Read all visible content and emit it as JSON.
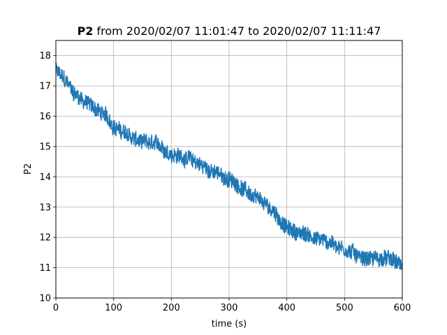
{
  "chart_data": {
    "type": "line",
    "title_bold": "P2",
    "title_rest": " from 2020/02/07 11:01:47 to 2020/02/07 11:11:47",
    "xlabel": "time (s)",
    "ylabel": "P2",
    "xlim": [
      0,
      600
    ],
    "ylim": [
      10,
      18.5
    ],
    "xticks": [
      0,
      100,
      200,
      300,
      400,
      500,
      600
    ],
    "yticks": [
      10,
      11,
      12,
      13,
      14,
      15,
      16,
      17,
      18
    ],
    "grid": true,
    "noise_amplitude": 0.25,
    "series": [
      {
        "color": "#1f77b4",
        "trend_x": [
          0,
          10,
          30,
          50,
          80,
          100,
          130,
          150,
          180,
          200,
          230,
          250,
          280,
          300,
          320,
          350,
          380,
          400,
          420,
          450,
          480,
          500,
          530,
          560,
          580,
          600
        ],
        "trend_y": [
          17.5,
          17.3,
          16.8,
          16.5,
          16.1,
          15.7,
          15.3,
          15.1,
          15.0,
          14.8,
          14.6,
          14.4,
          14.1,
          13.9,
          13.7,
          13.2,
          12.8,
          12.3,
          12.15,
          12.0,
          11.8,
          11.65,
          11.35,
          11.3,
          11.25,
          11.0
        ]
      }
    ]
  }
}
